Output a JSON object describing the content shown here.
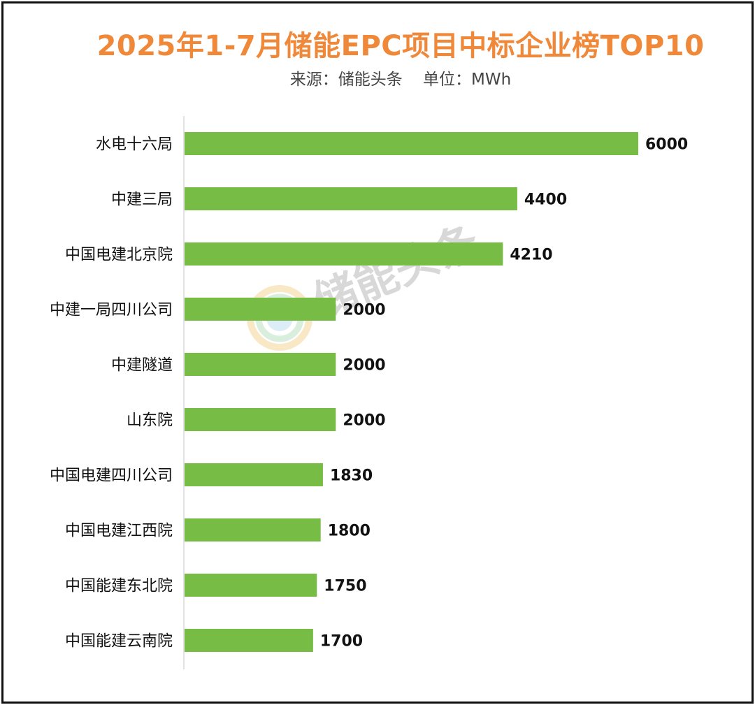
{
  "title": "2025年1-7月储能EPC项目中标企业榜TOP10",
  "subtitle": "来源：储能头条    单位：MWh",
  "watermark_text": "储能头条",
  "colors": {
    "bar": "#77bd45",
    "title": "#f0883a",
    "axis": "#d9d9d9",
    "label": "#111111"
  },
  "chart_data": {
    "type": "bar",
    "orientation": "horizontal",
    "title": "2025年1-7月储能EPC项目中标企业榜TOP10",
    "subtitle": "来源：储能头条    单位：MWh",
    "xlabel": "",
    "ylabel": "",
    "xlim": [
      0,
      6000
    ],
    "grid": false,
    "legend": "none",
    "categories": [
      "水电十六局",
      "中建三局",
      "中国电建北京院",
      "中建一局四川公司",
      "中建隧道",
      "山东院",
      "中国电建四川公司",
      "中国电建江西院",
      "中国能建东北院",
      "中国能建云南院"
    ],
    "values": [
      6000,
      4400,
      4210,
      2000,
      2000,
      2000,
      1830,
      1800,
      1750,
      1700
    ]
  }
}
